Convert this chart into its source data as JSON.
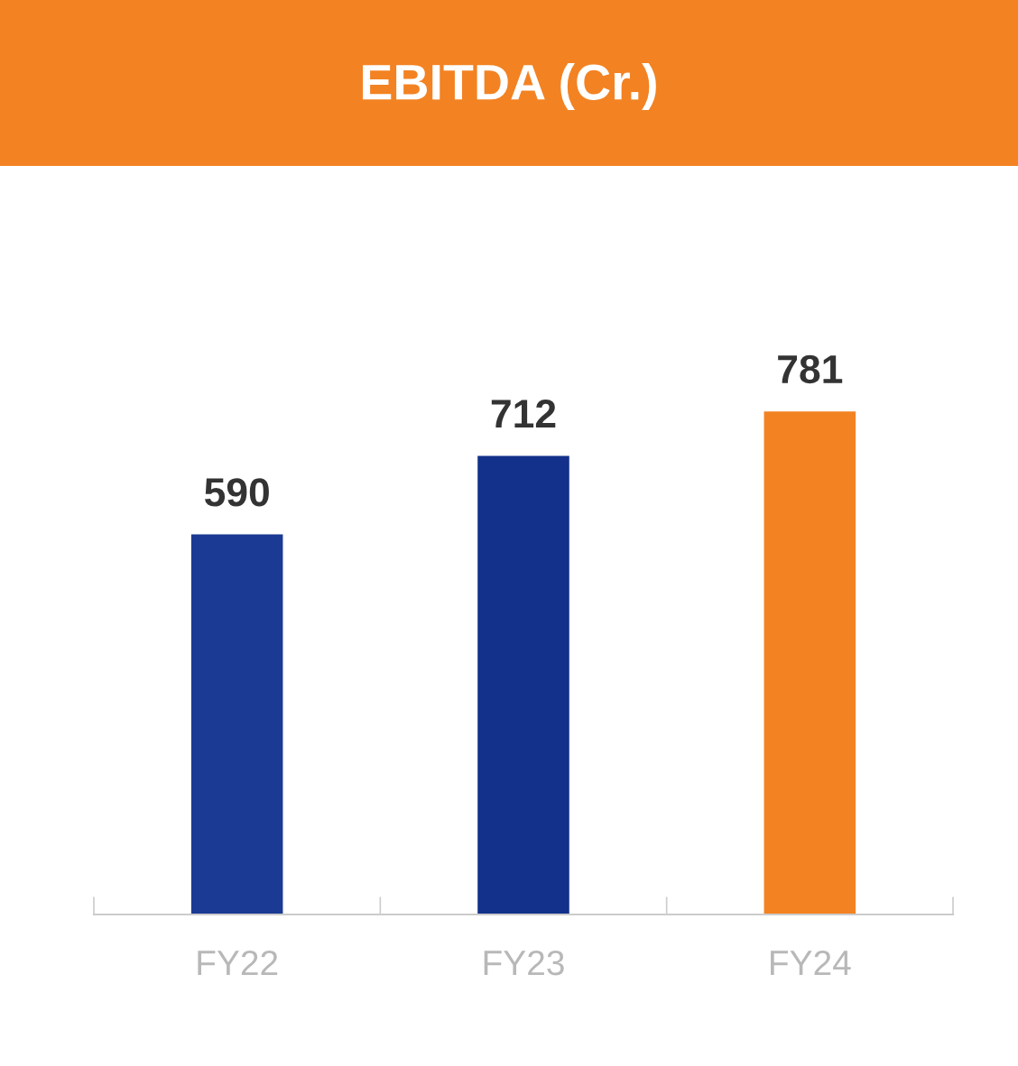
{
  "chart_data": {
    "type": "bar",
    "title": "EBITDA (Cr.)",
    "categories": [
      "FY22",
      "FY23",
      "FY24"
    ],
    "values": [
      590,
      712,
      781
    ],
    "colors": [
      "#1a3a93",
      "#13318a",
      "#f38222"
    ],
    "data_labels": true,
    "tick_labels": "x",
    "grid": false,
    "legend": false
  }
}
